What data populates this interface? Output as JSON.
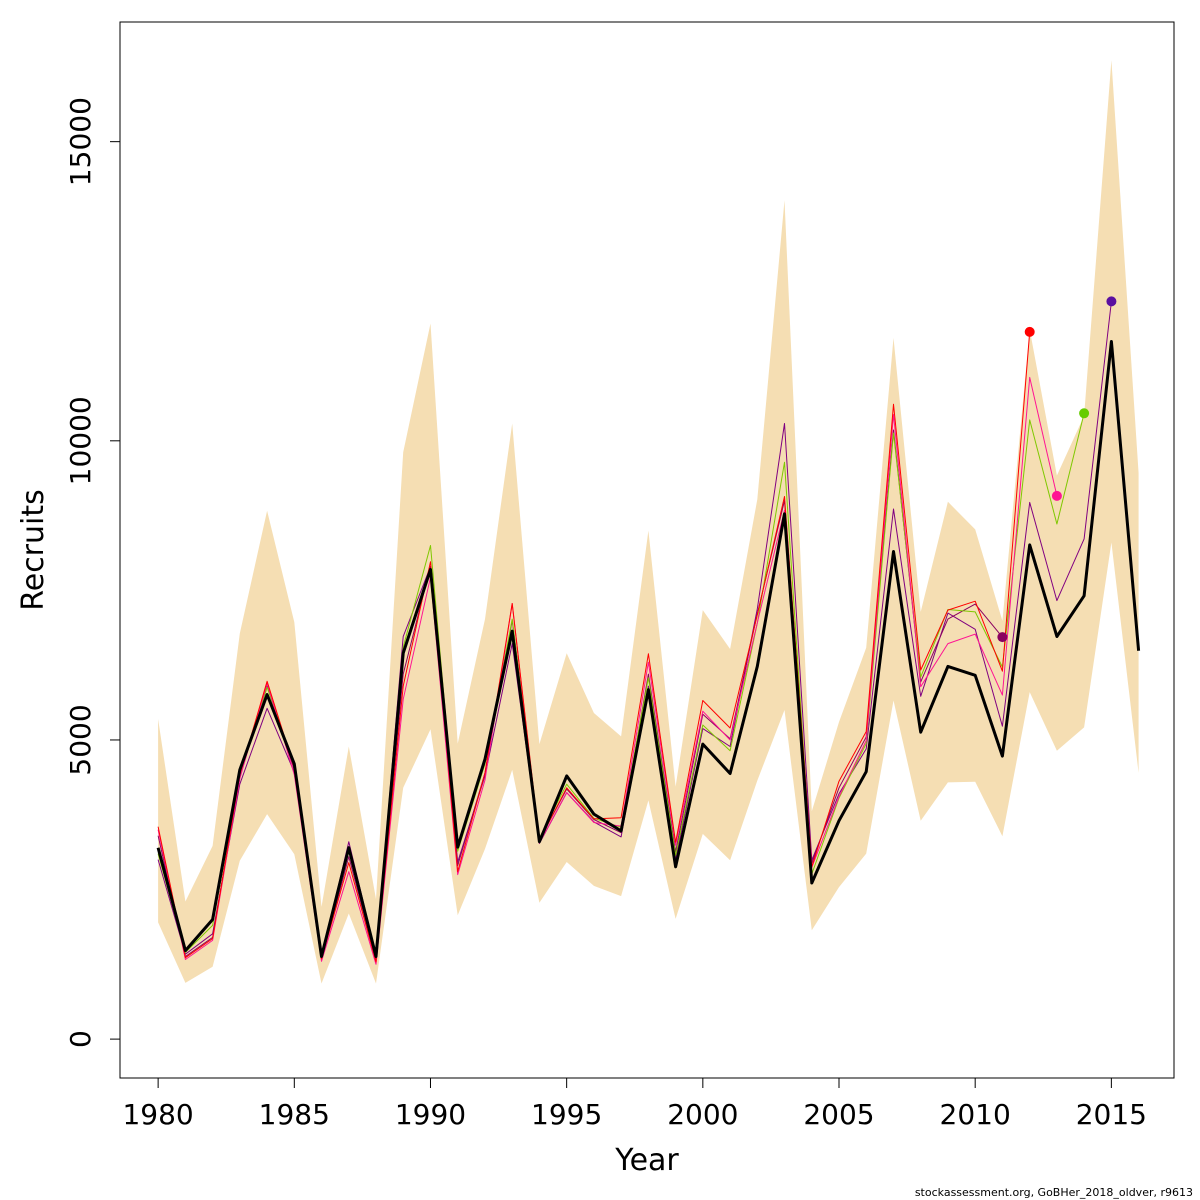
{
  "chart_data": {
    "type": "line",
    "title": "",
    "xlabel": "Year",
    "ylabel": "Recruits",
    "footer": "stockassessment.org, GoBHer_2018_oldver, r9613",
    "xlim": [
      1978.6,
      2017.3
    ],
    "ylim": [
      -650,
      17000
    ],
    "x_ticks": [
      1980,
      1985,
      1990,
      1995,
      2000,
      2005,
      2010,
      2015
    ],
    "y_ticks": [
      0,
      5000,
      10000,
      15000
    ],
    "grid": false,
    "legend": "none",
    "ci_band": {
      "color": "#f5deb3",
      "years": [
        1980,
        1981,
        1982,
        1983,
        1984,
        1985,
        1986,
        1987,
        1988,
        1989,
        1990,
        1991,
        1992,
        1993,
        1994,
        1995,
        1996,
        1997,
        1998,
        1999,
        2000,
        2001,
        2002,
        2003,
        2004,
        2005,
        2006,
        2007,
        2008,
        2009,
        2010,
        2011,
        2012,
        2013,
        2014,
        2015,
        2016
      ],
      "lower": [
        1950,
        940,
        1210,
        2980,
        3760,
        3090,
        930,
        2100,
        930,
        4200,
        5180,
        2070,
        3180,
        4500,
        2280,
        2960,
        2560,
        2390,
        3990,
        2010,
        3430,
        2990,
        4320,
        5500,
        1820,
        2540,
        3100,
        5660,
        3650,
        4290,
        4300,
        3390,
        5800,
        4820,
        5210,
        8300,
        4450
      ],
      "upper": [
        5350,
        2300,
        3230,
        6780,
        8830,
        6970,
        2210,
        4890,
        2340,
        9810,
        11960,
        4940,
        7020,
        10290,
        4930,
        6450,
        5450,
        5060,
        8500,
        4220,
        7170,
        6520,
        9020,
        14020,
        3810,
        5300,
        6540,
        11720,
        7140,
        8980,
        8520,
        6990,
        11860,
        9420,
        10420,
        16360,
        9460
      ]
    },
    "series": [
      {
        "color": "#000000",
        "width": 3,
        "years": [
          1980,
          1981,
          1982,
          1983,
          1984,
          1985,
          1986,
          1987,
          1988,
          1989,
          1990,
          1991,
          1992,
          1993,
          1994,
          1995,
          1996,
          1997,
          1998,
          1999,
          2000,
          2001,
          2002,
          2003,
          2004,
          2005,
          2006,
          2007,
          2008,
          2009,
          2010,
          2011,
          2012,
          2013,
          2014,
          2015,
          2016
        ],
        "values": [
          3200,
          1480,
          2000,
          4500,
          5760,
          4600,
          1380,
          3200,
          1380,
          6450,
          7850,
          3210,
          4680,
          6820,
          3300,
          4400,
          3760,
          3480,
          5840,
          2880,
          4930,
          4440,
          6230,
          8780,
          2610,
          3650,
          4470,
          8150,
          5130,
          6230,
          6080,
          4730,
          8260,
          6730,
          7410,
          11660,
          6490
        ]
      },
      {
        "color": "#800080",
        "width": 1,
        "years": [
          1980,
          1981,
          1982,
          1983,
          1984,
          1985,
          1986,
          1987,
          1988,
          1989,
          1990,
          1991,
          1992,
          1993,
          1994,
          1995,
          1996,
          1997,
          1998,
          1999,
          2000,
          2001,
          2002,
          2003,
          2004,
          2005,
          2006,
          2007,
          2008,
          2009,
          2010,
          2011,
          2012,
          2013,
          2014,
          2015
        ],
        "values": [
          3000,
          1420,
          1760,
          4260,
          5530,
          4460,
          1360,
          3300,
          1400,
          6730,
          7900,
          2960,
          4400,
          6610,
          3270,
          4120,
          3630,
          3380,
          5900,
          3000,
          5190,
          4890,
          7190,
          10290,
          2990,
          4100,
          4850,
          8860,
          5730,
          7120,
          6850,
          5230,
          8970,
          7330,
          8360,
          12330
        ]
      },
      {
        "color": "#8b0060",
        "width": 1,
        "years": [
          1980,
          1981,
          1982,
          1983,
          1984,
          1985,
          1986,
          1987,
          1988,
          1989,
          1990,
          1991,
          1992,
          1993,
          1994,
          1995,
          1996,
          1997,
          1998,
          1999,
          2000,
          2001,
          2002,
          2003,
          2004,
          2005,
          2006,
          2007,
          2008,
          2009,
          2010,
          2011
        ],
        "values": [
          3400,
          1380,
          1700,
          4380,
          5900,
          4500,
          1330,
          3050,
          1320,
          6100,
          7900,
          2900,
          4450,
          7000,
          3330,
          4180,
          3670,
          3450,
          6100,
          3130,
          5430,
          5020,
          7110,
          9000,
          2940,
          4200,
          5050,
          10180,
          5970,
          7020,
          7270,
          6720
        ]
      },
      {
        "color": "#7fc800",
        "width": 1,
        "years": [
          1980,
          1981,
          1982,
          1983,
          1984,
          1985,
          1986,
          1987,
          1988,
          1989,
          1990,
          1991,
          1992,
          1993,
          1994,
          1995,
          1996,
          1997,
          1998,
          1999,
          2000,
          2001,
          2002,
          2003,
          2004,
          2005,
          2006,
          2007,
          2008,
          2009,
          2010,
          2011,
          2012,
          2013,
          2014
        ],
        "values": [
          3100,
          1450,
          1900,
          4420,
          5880,
          4580,
          1400,
          3150,
          1410,
          6550,
          8250,
          3140,
          4600,
          7020,
          3360,
          4260,
          3690,
          3540,
          6040,
          3070,
          5250,
          4820,
          6950,
          9640,
          2760,
          4030,
          4940,
          10130,
          6050,
          7180,
          7140,
          6220,
          10350,
          8610,
          10460
        ]
      },
      {
        "color": "#ff1493",
        "width": 1,
        "years": [
          1980,
          1981,
          1982,
          1983,
          1984,
          1985,
          1986,
          1987,
          1988,
          1989,
          1990,
          1991,
          1992,
          1993,
          1994,
          1995,
          1996,
          1997,
          1998,
          1999,
          2000,
          2001,
          2002,
          2003,
          2004,
          2005,
          2006,
          2007,
          2008,
          2009,
          2010,
          2011,
          2012,
          2013
        ],
        "values": [
          3500,
          1330,
          1650,
          4350,
          5950,
          4420,
          1300,
          2800,
          1250,
          5680,
          7720,
          2750,
          4330,
          7280,
          3280,
          4120,
          3620,
          3560,
          6300,
          3240,
          5480,
          5000,
          6960,
          8840,
          2870,
          4050,
          4990,
          10440,
          5890,
          6610,
          6770,
          5750,
          11060,
          9080
        ]
      },
      {
        "color": "#ff0000",
        "width": 1,
        "years": [
          1980,
          1981,
          1982,
          1983,
          1984,
          1985,
          1986,
          1987,
          1988,
          1989,
          1990,
          1991,
          1992,
          1993,
          1994,
          1995,
          1996,
          1997,
          1998,
          1999,
          2000,
          2001,
          2002,
          2003,
          2004,
          2005,
          2006,
          2007,
          2008,
          2009,
          2010,
          2011,
          2012
        ],
        "values": [
          3550,
          1360,
          1680,
          4420,
          5980,
          4530,
          1340,
          2950,
          1290,
          5900,
          7980,
          2800,
          4450,
          7280,
          3320,
          4200,
          3680,
          3700,
          6440,
          3290,
          5660,
          5200,
          7090,
          9070,
          2880,
          4310,
          5140,
          10610,
          6170,
          7170,
          7320,
          6150,
          11820
        ]
      }
    ],
    "endpoints": [
      {
        "year": 2011,
        "value": 6720,
        "color": "#8b0060"
      },
      {
        "year": 2012,
        "value": 11820,
        "color": "#ff0000"
      },
      {
        "year": 2013,
        "value": 9080,
        "color": "#ff1493"
      },
      {
        "year": 2014,
        "value": 10460,
        "color": "#66cc00"
      },
      {
        "year": 2015,
        "value": 12330,
        "color": "#5a0fa0"
      }
    ]
  }
}
